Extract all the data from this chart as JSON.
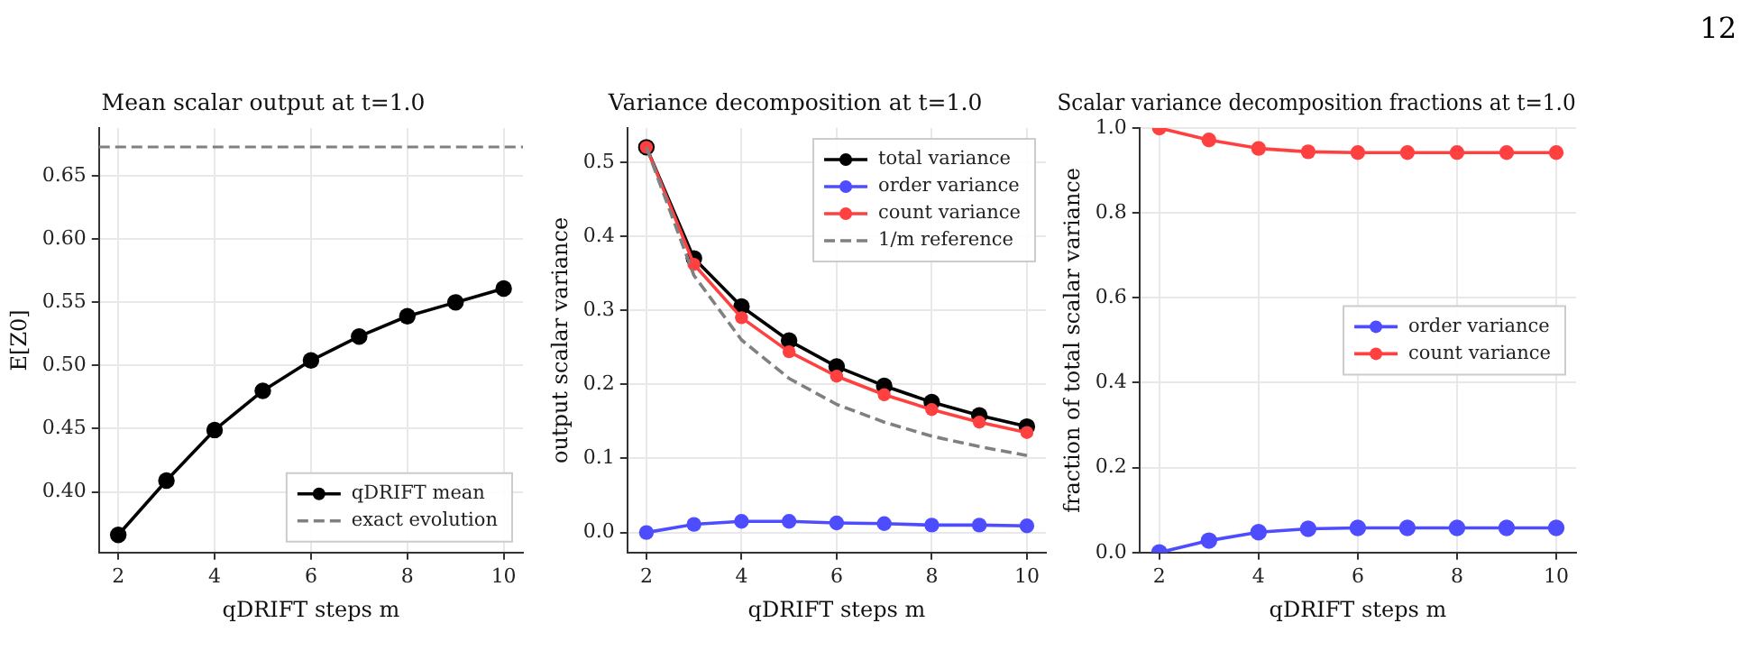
{
  "chart_data": [
    {
      "type": "line",
      "title": "Mean scalar output at t=1.0",
      "xlabel": "qDRIFT steps m",
      "ylabel": "E[Z0]",
      "x": [
        2,
        3,
        4,
        5,
        6,
        7,
        8,
        9,
        10
      ],
      "xlim": [
        1.6,
        10.4
      ],
      "xticks": [
        2,
        4,
        6,
        8,
        10
      ],
      "ylim": [
        0.352,
        0.688
      ],
      "yticks": [
        {
          "value": 0.4,
          "label": "0.40"
        },
        0.45,
        {
          "value": 0.5,
          "label": "0.50"
        },
        0.55,
        {
          "value": 0.6,
          "label": "0.60"
        },
        0.65
      ],
      "grid": true,
      "legend": "bottom right",
      "marker": "circle",
      "series": [
        {
          "name": "qDRIFT mean",
          "color": "#000000",
          "values": [
            0.366,
            0.409,
            0.449,
            0.48,
            0.504,
            0.523,
            0.539,
            0.55,
            0.561
          ]
        }
      ],
      "ref_lines": [
        {
          "axis": "y",
          "value": 0.673,
          "label": "exact evolution",
          "color": "#808080",
          "line_style": "dashed"
        }
      ]
    },
    {
      "type": "line",
      "title": "Variance decomposition at t=1.0",
      "xlabel": "qDRIFT steps m",
      "ylabel": "output scalar variance",
      "x": [
        2,
        3,
        4,
        5,
        6,
        7,
        8,
        9,
        10
      ],
      "xlim": [
        1.6,
        10.4
      ],
      "xticks": [
        2,
        4,
        6,
        8,
        10
      ],
      "ylim": [
        -0.027,
        0.546
      ],
      "yticks": [
        {
          "value": 0,
          "label": "0.0"
        },
        0.1,
        0.2,
        0.3,
        0.4,
        0.5
      ],
      "grid": true,
      "legend": "top right",
      "marker": "circle",
      "series": [
        {
          "name": "total variance",
          "color": "#000000",
          "values": [
            0.52,
            0.37,
            0.305,
            0.259,
            0.224,
            0.198,
            0.176,
            0.158,
            0.143
          ]
        },
        {
          "name": "order variance",
          "color": "#4d4dff",
          "values": [
            0.0,
            0.011,
            0.015,
            0.015,
            0.013,
            0.012,
            0.01,
            0.01,
            0.009
          ]
        },
        {
          "name": "count variance",
          "color": "#ff4040",
          "values": [
            0.52,
            0.362,
            0.29,
            0.244,
            0.211,
            0.186,
            0.166,
            0.149,
            0.135
          ]
        },
        {
          "name": "1/m reference",
          "color": "#808080",
          "marker": "none",
          "line_style": "dashed",
          "values": [
            0.52,
            0.347,
            0.26,
            0.208,
            0.173,
            0.149,
            0.13,
            0.116,
            0.104
          ]
        }
      ]
    },
    {
      "type": "line",
      "title": "Scalar variance decomposition fractions at t=1.0",
      "xlabel": "qDRIFT steps m",
      "ylabel": "fraction of total scalar variance",
      "x": [
        2,
        3,
        4,
        5,
        6,
        7,
        8,
        9,
        10
      ],
      "xlim": [
        1.6,
        10.4
      ],
      "xticks": [
        2,
        4,
        6,
        8,
        10
      ],
      "ylim": [
        0,
        1
      ],
      "yticks": [
        {
          "value": 0,
          "label": "0.0"
        },
        0.2,
        0.4,
        0.6,
        0.8,
        {
          "value": 1,
          "label": "1.0"
        }
      ],
      "grid": true,
      "legend": "center right",
      "marker": "circle",
      "annotations": [
        "12"
      ],
      "series": [
        {
          "name": "order variance",
          "color": "#4d4dff",
          "values": [
            0.0,
            0.028,
            0.048,
            0.056,
            0.058,
            0.058,
            0.058,
            0.058,
            0.058
          ]
        },
        {
          "name": "count variance",
          "color": "#ff4040",
          "values": [
            1.0,
            0.972,
            0.952,
            0.944,
            0.942,
            0.942,
            0.942,
            0.942,
            0.942
          ]
        }
      ]
    }
  ]
}
